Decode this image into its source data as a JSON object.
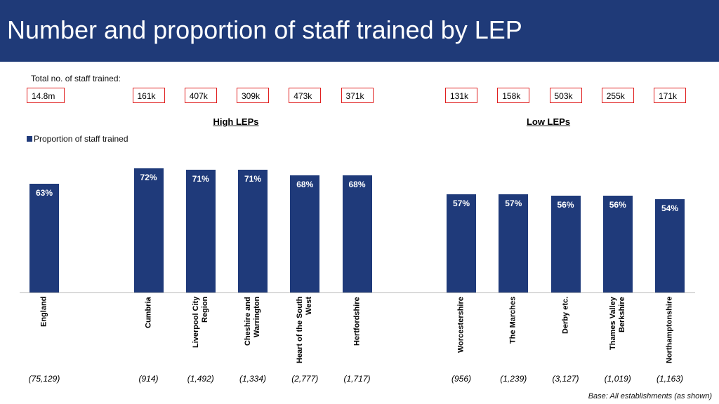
{
  "header": {
    "title": "Number and proportion of staff trained by LEP"
  },
  "chart_data": {
    "type": "bar",
    "totals_caption": "Total no. of staff trained:",
    "totals": [
      "14.8m",
      null,
      "161k",
      "407k",
      "309k",
      "473k",
      "371k",
      null,
      "131k",
      "158k",
      "503k",
      "255k",
      "171k"
    ],
    "groups": [
      "High LEPs",
      "Low LEPs"
    ],
    "categories": [
      "England",
      null,
      "Cumbria",
      "Liverpool City Region",
      "Cheshire and Warrington",
      "Heart of the South West",
      "Hertfordshire",
      null,
      "Worcestershire",
      "The Marches",
      "Derby etc.",
      "Thames Valley Berkshire",
      "Northamptonshire"
    ],
    "series": [
      {
        "name": "Proportion of staff trained",
        "color": "#1f3a7a",
        "values": [
          63,
          null,
          72,
          71,
          71,
          68,
          68,
          null,
          57,
          57,
          56,
          56,
          54
        ],
        "value_labels": [
          "63%",
          null,
          "72%",
          "71%",
          "71%",
          "68%",
          "68%",
          null,
          "57%",
          "57%",
          "56%",
          "56%",
          "54%"
        ]
      }
    ],
    "bases": [
      "(75,129)",
      null,
      "(914)",
      "(1,492)",
      "(1,334)",
      "(2,777)",
      "(1,717)",
      null,
      "(956)",
      "(1,239)",
      "(3,127)",
      "(1,019)",
      "(1,163)"
    ],
    "ylim": [
      0,
      80
    ],
    "footnote": "Base: All establishments (as shown)"
  }
}
